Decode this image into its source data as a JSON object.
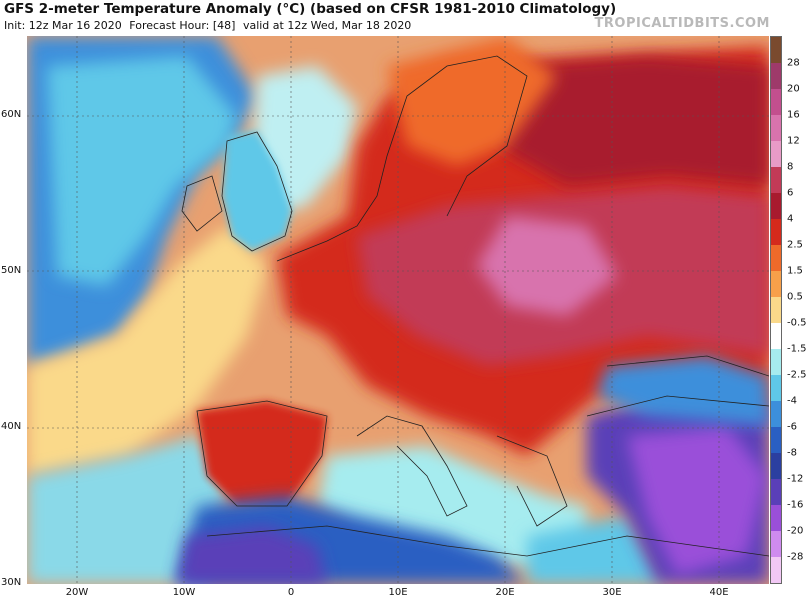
{
  "header": {
    "title": "GFS 2-meter Temperature Anomaly (°C) (based on CFSR 1981-2010 Climatology)",
    "init": "Init: 12z Mar 16 2020",
    "forecast_hour": "Forecast Hour: [48]",
    "valid": "valid at 12z Wed, Mar 18 2020",
    "watermark": "TROPICALTIDBITS.COM"
  },
  "map": {
    "lat_labels": [
      "60N",
      "50N",
      "40N",
      "30N"
    ],
    "lon_labels": [
      "20W",
      "10W",
      "0",
      "10E",
      "20E",
      "30E",
      "40E"
    ]
  },
  "legend": {
    "labels": [
      "28",
      "20",
      "16",
      "12",
      "8",
      "6",
      "4",
      "2.5",
      "1.5",
      "0.5",
      "-0.5",
      "-1.5",
      "-2.5",
      "-4",
      "-6",
      "-8",
      "-12",
      "-16",
      "-20",
      "-28"
    ],
    "colors": [
      "#7a4a2e",
      "#9e3a6a",
      "#c24f8e",
      "#d873ad",
      "#e89bc7",
      "#c23a57",
      "#a81a2e",
      "#d42a1c",
      "#ef6a2a",
      "#f7a04a",
      "#fad98a",
      "#ffffff",
      "#a6ecef",
      "#5fc8e8",
      "#3c8fdb",
      "#2a5fc2",
      "#2b3fa0",
      "#5a3fb8",
      "#9a4fd9",
      "#cf8bef",
      "#f2c8f5"
    ]
  }
}
